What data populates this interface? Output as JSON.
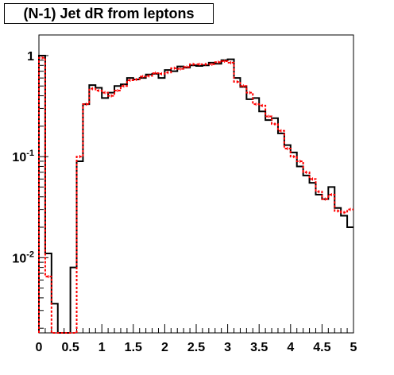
{
  "chart_data": {
    "type": "line",
    "title": "(N-1) Jet dR from leptons",
    "xlim": [
      0,
      5
    ],
    "ylim": [
      0.0018,
      1.6
    ],
    "yscale": "log",
    "grid": false,
    "bin_width": 0.1,
    "x_ticks": [
      "0",
      "0.5",
      "1",
      "1.5",
      "2",
      "2.5",
      "3",
      "3.5",
      "4",
      "4.5",
      "5"
    ],
    "x_tick_values": [
      0,
      0.5,
      1,
      1.5,
      2,
      2.5,
      3,
      3.5,
      4,
      4.5,
      5
    ],
    "y_ticks": [
      {
        "value": 1,
        "base": "1",
        "exp": ""
      },
      {
        "value": 0.1,
        "base": "10",
        "exp": "-1"
      },
      {
        "value": 0.01,
        "base": "10",
        "exp": "-2"
      }
    ],
    "series": [
      {
        "style": "solid",
        "color": "#000000",
        "values": [
          1.0,
          0.011,
          0.0035,
          0.0,
          0.0,
          0.008,
          0.09,
          0.33,
          0.51,
          0.48,
          0.38,
          0.43,
          0.5,
          0.52,
          0.6,
          0.58,
          0.6,
          0.65,
          0.66,
          0.6,
          0.72,
          0.7,
          0.78,
          0.76,
          0.8,
          0.79,
          0.8,
          0.85,
          0.83,
          0.9,
          0.92,
          0.6,
          0.49,
          0.37,
          0.38,
          0.28,
          0.23,
          0.24,
          0.17,
          0.13,
          0.11,
          0.08,
          0.065,
          0.055,
          0.042,
          0.038,
          0.05,
          0.031,
          0.026,
          0.02
        ]
      },
      {
        "style": "dashed",
        "color": "#ff0000",
        "values": [
          0.95,
          0.0065,
          0.0,
          0.0,
          0.0,
          0.0,
          0.1,
          0.33,
          0.47,
          0.45,
          0.43,
          0.4,
          0.45,
          0.5,
          0.57,
          0.58,
          0.62,
          0.63,
          0.67,
          0.66,
          0.68,
          0.75,
          0.74,
          0.77,
          0.82,
          0.82,
          0.82,
          0.82,
          0.86,
          0.88,
          0.85,
          0.55,
          0.5,
          0.43,
          0.33,
          0.32,
          0.25,
          0.21,
          0.18,
          0.12,
          0.1,
          0.09,
          0.07,
          0.06,
          0.045,
          0.038,
          0.042,
          0.029,
          0.028,
          0.03
        ]
      }
    ]
  }
}
